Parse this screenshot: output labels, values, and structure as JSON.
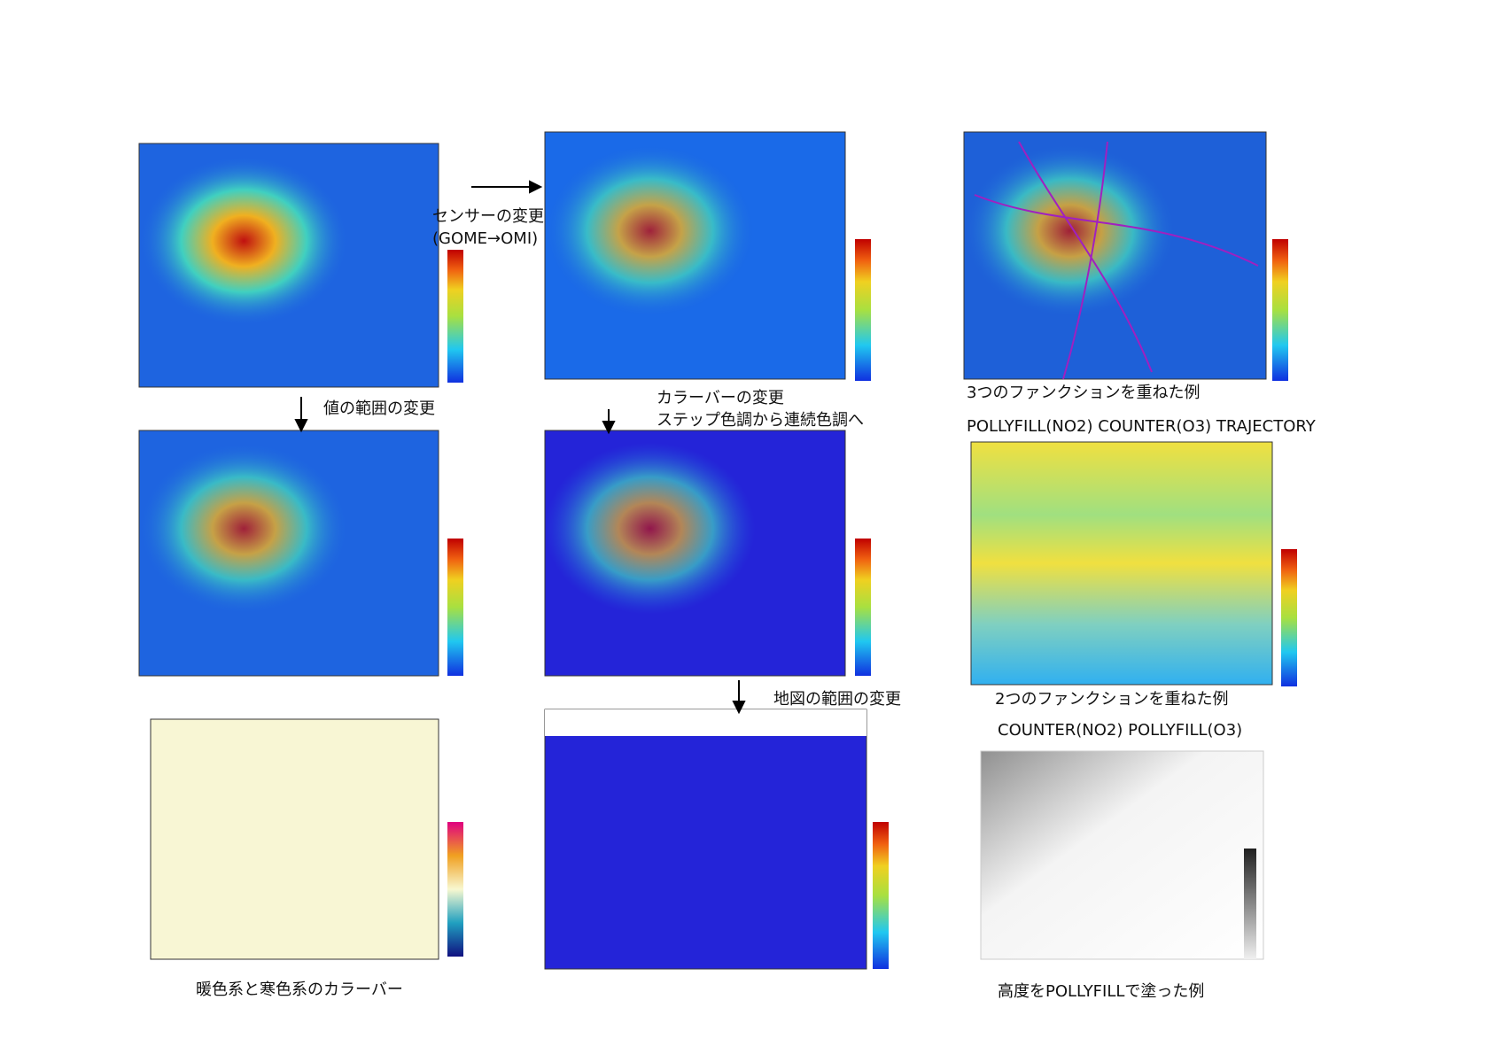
{
  "annotations": {
    "sensor_change": [
      "センサーの変更",
      "(GOME→OMI)"
    ],
    "range_change": "値の範囲の変更",
    "colorbar_change": [
      "カラーバーの変更",
      "ステップ色調から連続色調へ"
    ],
    "map_range_change": "地図の範囲の変更"
  },
  "captions": {
    "warm_cold": "暖色系と寒色系のカラーバー",
    "three_functions": [
      "3つのファンクションを重ねた例",
      "POLLYFILL(NO2) COUNTER(O3) TRAJECTORY"
    ],
    "two_functions": [
      "2つのファンクションを重ねた例",
      "COUNTER(NO2) POLLYFILL(O3)"
    ],
    "elevation": "高度をPOLLYFILLで塗った例"
  }
}
